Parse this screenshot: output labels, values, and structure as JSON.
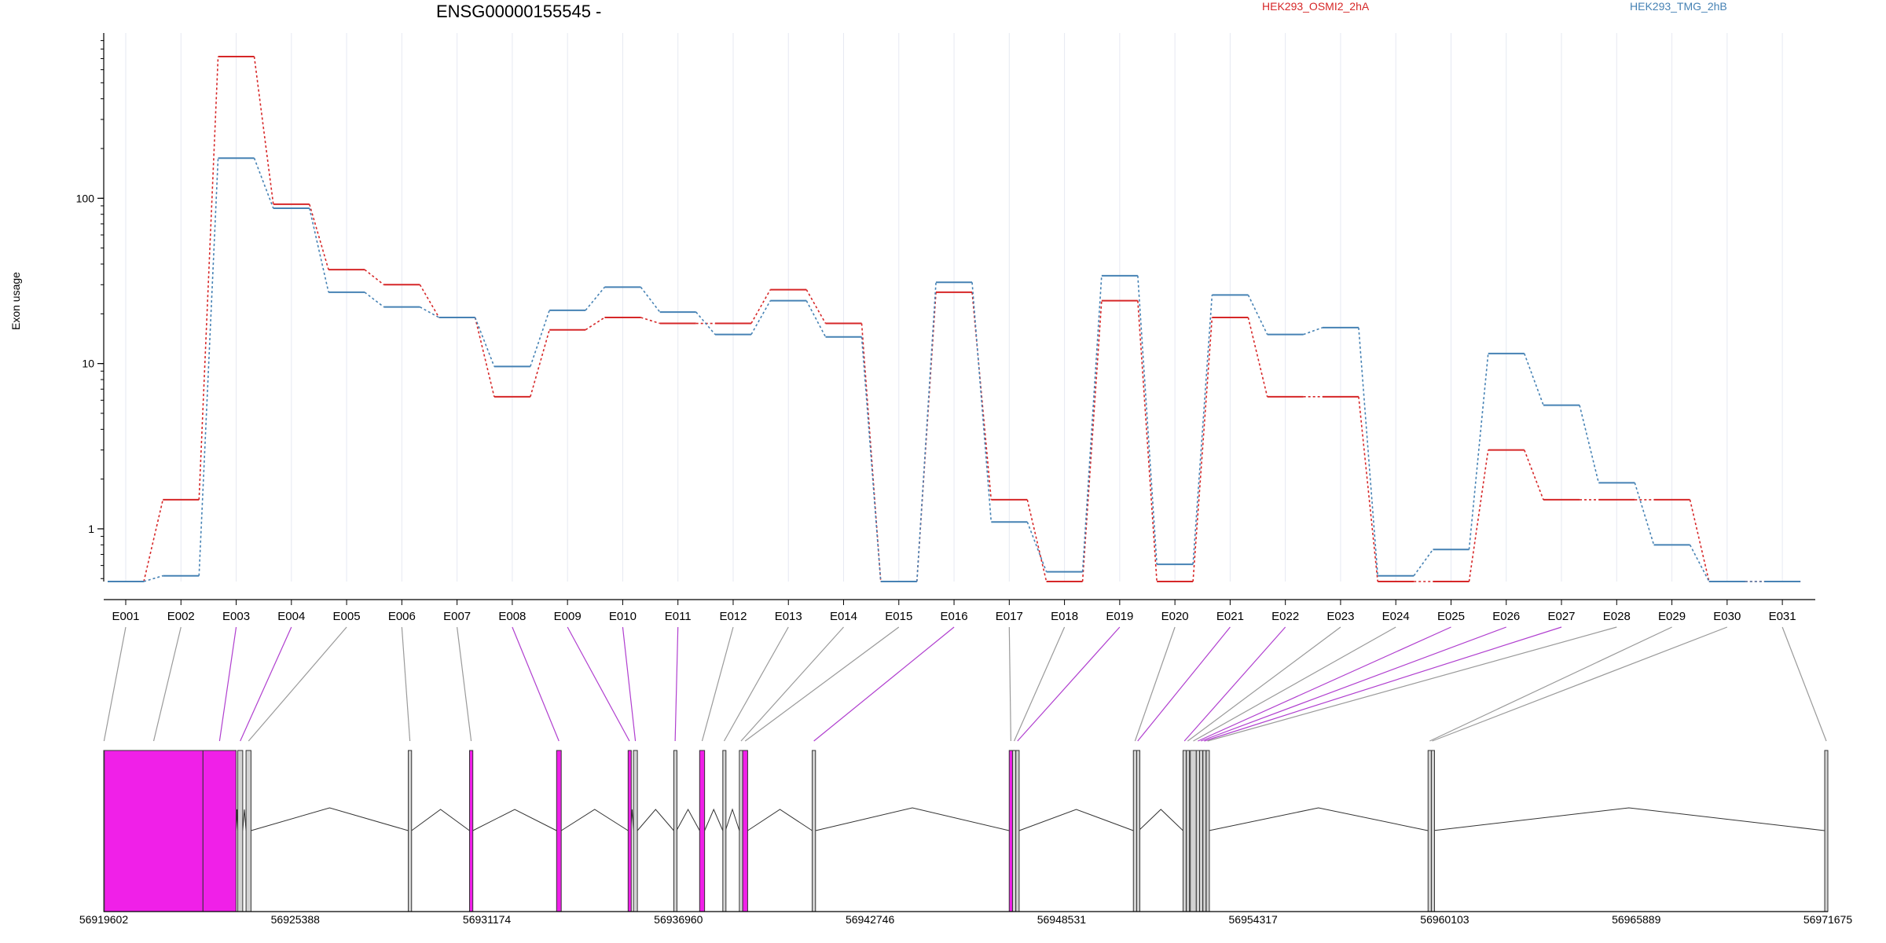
{
  "chart_data": {
    "type": "line",
    "title": "ENSG00000155545 -",
    "ylabel": "Exon usage",
    "xlabel": "",
    "yscale": "log",
    "ylim": [
      0.48,
      1000
    ],
    "yticks": [
      {
        "value": 1,
        "label": "1"
      },
      {
        "value": 10,
        "label": "10"
      },
      {
        "value": 100,
        "label": "100"
      }
    ],
    "grid": "vertical",
    "legend_position": "top",
    "categories": [
      "E001",
      "E002",
      "E003",
      "E004",
      "E005",
      "E006",
      "E007",
      "E008",
      "E009",
      "E010",
      "E011",
      "E012",
      "E013",
      "E014",
      "E015",
      "E016",
      "E017",
      "E018",
      "E019",
      "E020",
      "E021",
      "E022",
      "E023",
      "E024",
      "E025",
      "E026",
      "E027",
      "E028",
      "E029",
      "E030",
      "E031"
    ],
    "series": [
      {
        "name": "HEK293_OSMI2_2hA",
        "color": "#d62728",
        "values": [
          0.48,
          1.5,
          720,
          92,
          37,
          30,
          19,
          6.3,
          16,
          19,
          17.5,
          17.5,
          28,
          17.5,
          0.48,
          27,
          1.5,
          0.48,
          24,
          0.48,
          19,
          6.3,
          6.3,
          0.48,
          0.48,
          3.0,
          1.5,
          1.5,
          1.5,
          0.48,
          0.48
        ]
      },
      {
        "name": "HEK293_TMG_2hB",
        "color": "#4682b4",
        "values": [
          0.48,
          0.52,
          175,
          87,
          27,
          22,
          19,
          9.6,
          21,
          29,
          20.5,
          15,
          24,
          14.5,
          0.48,
          31,
          1.1,
          0.55,
          34,
          0.61,
          26,
          15,
          16.5,
          0.52,
          0.75,
          11.5,
          5.6,
          1.9,
          0.8,
          0.48,
          0.48
        ]
      }
    ],
    "gene_model": {
      "genome_ticks": [
        "56919602",
        "56925388",
        "56931174",
        "56936960",
        "56942746",
        "56948531",
        "56954317",
        "56960103",
        "56965889",
        "56971675"
      ],
      "genome_range": [
        56919602,
        56971675
      ],
      "highlight_color": "#f020e8",
      "exons": [
        {
          "id": "E001",
          "start": 56919602,
          "end": 56919620,
          "hl": false
        },
        {
          "id": "E002",
          "start": 56919620,
          "end": 56922600,
          "hl": true
        },
        {
          "id": "E003",
          "start": 56922600,
          "end": 56923600,
          "hl": true
        },
        {
          "id": "E004",
          "start": 56923650,
          "end": 56923800,
          "hl": false
        },
        {
          "id": "E005",
          "start": 56923900,
          "end": 56924050,
          "hl": false
        },
        {
          "id": "E006",
          "start": 56928800,
          "end": 56928900,
          "hl": false
        },
        {
          "id": "E007",
          "start": 56930650,
          "end": 56930750,
          "hl": true
        },
        {
          "id": "E008",
          "start": 56933280,
          "end": 56933420,
          "hl": true
        },
        {
          "id": "E009",
          "start": 56935440,
          "end": 56935520,
          "hl": true
        },
        {
          "id": "E010",
          "start": 56935600,
          "end": 56935720,
          "hl": false
        },
        {
          "id": "E011",
          "start": 56936820,
          "end": 56936900,
          "hl": false
        },
        {
          "id": "E012",
          "start": 56937600,
          "end": 56937750,
          "hl": true
        },
        {
          "id": "E013",
          "start": 56938300,
          "end": 56938380,
          "hl": false
        },
        {
          "id": "E014",
          "start": 56938800,
          "end": 56938900,
          "hl": false
        },
        {
          "id": "E015",
          "start": 56938900,
          "end": 56939050,
          "hl": true
        },
        {
          "id": "E016",
          "start": 56941000,
          "end": 56941100,
          "hl": false
        },
        {
          "id": "E017",
          "start": 56946950,
          "end": 56947050,
          "hl": true
        },
        {
          "id": "E018",
          "start": 56947050,
          "end": 56947150,
          "hl": false
        },
        {
          "id": "E019",
          "start": 56947150,
          "end": 56947250,
          "hl": false
        },
        {
          "id": "E020",
          "start": 56950700,
          "end": 56950800,
          "hl": false
        },
        {
          "id": "E021",
          "start": 56950800,
          "end": 56950860,
          "hl": false
        },
        {
          "id": "E022",
          "start": 56952200,
          "end": 56952280,
          "hl": false
        },
        {
          "id": "E023",
          "start": 56952300,
          "end": 56952380,
          "hl": false
        },
        {
          "id": "E024",
          "start": 56952420,
          "end": 56952600,
          "hl": false
        },
        {
          "id": "E025",
          "start": 56952600,
          "end": 56952700,
          "hl": false
        },
        {
          "id": "E026",
          "start": 56952700,
          "end": 56952780,
          "hl": false
        },
        {
          "id": "E027",
          "start": 56952800,
          "end": 56952880,
          "hl": false
        },
        {
          "id": "E028",
          "start": 56952900,
          "end": 56952980,
          "hl": false
        },
        {
          "id": "E029",
          "start": 56959600,
          "end": 56959700,
          "hl": false
        },
        {
          "id": "E030",
          "start": 56959700,
          "end": 56959750,
          "hl": false
        },
        {
          "id": "E031",
          "start": 56971580,
          "end": 56971675,
          "hl": false
        }
      ],
      "connector_highlights": [
        "E003",
        "E004",
        "E008",
        "E009",
        "E010",
        "E011",
        "E016",
        "E019",
        "E021",
        "E022",
        "E025",
        "E026",
        "E027"
      ]
    }
  }
}
